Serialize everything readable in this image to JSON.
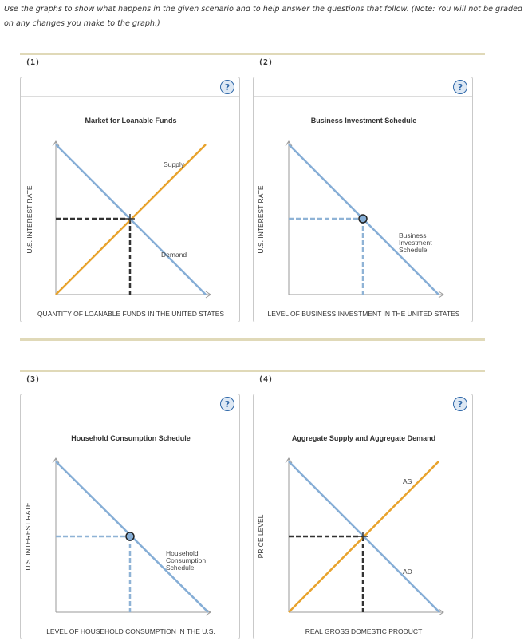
{
  "instructions": "Use the graphs to show what happens in the given scenario and to help answer the questions that follow. (Note: You will not be graded on any changes you make to the graph.)",
  "help_symbol": "?",
  "colors": {
    "demand": "#86aed6",
    "supply": "#e8a32d",
    "equilibrium_dash": "#333333",
    "schedule_dash": "#8fb3d6",
    "point_fill": "#86aed6"
  },
  "panels": [
    {
      "number": "(1)",
      "title": "Market for Loanable Funds",
      "x_label": "QUANTITY OF LOANABLE FUNDS IN THE UNITED STATES",
      "y_label": "U.S. INTEREST RATE",
      "curves": [
        {
          "name": "Supply",
          "label": "Supply"
        },
        {
          "name": "Demand",
          "label": "Demand"
        }
      ],
      "marker": "cross"
    },
    {
      "number": "(2)",
      "title": "Business Investment Schedule",
      "x_label": "LEVEL OF BUSINESS INVESTMENT IN THE UNITED STATES",
      "y_label": "U.S. INTEREST RATE",
      "curves": [
        {
          "name": "Business Investment Schedule",
          "label_lines": [
            "Business",
            "Investment",
            "Schedule"
          ]
        }
      ],
      "marker": "circle"
    },
    {
      "number": "(3)",
      "title": "Household Consumption Schedule",
      "x_label": "LEVEL OF HOUSEHOLD CONSUMPTION IN THE U.S.",
      "y_label": "U.S. INTEREST RATE",
      "curves": [
        {
          "name": "Household Consumption Schedule",
          "label_lines": [
            "Household",
            "Consumption",
            "Schedule"
          ]
        }
      ],
      "marker": "circle"
    },
    {
      "number": "(4)",
      "title": "Aggregate Supply and Aggregate Demand",
      "x_label": "REAL GROSS DOMESTIC PRODUCT",
      "y_label": "PRICE LEVEL",
      "curves": [
        {
          "name": "AS",
          "label": "AS"
        },
        {
          "name": "AD",
          "label": "AD"
        }
      ],
      "marker": "cross"
    }
  ]
}
